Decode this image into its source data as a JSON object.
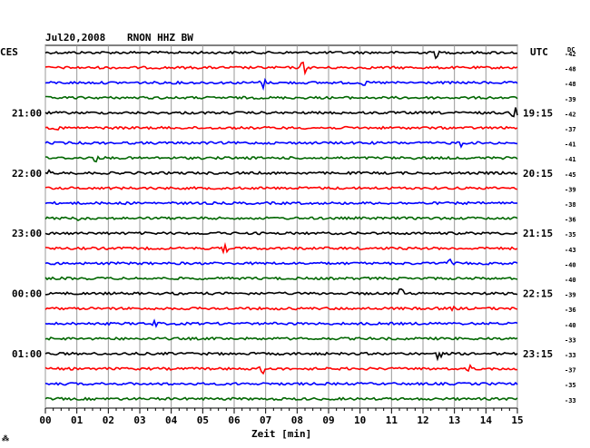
{
  "header": {
    "date": "Jul20,2008",
    "station": "RNON HHZ BW",
    "left_tz": "CES",
    "right_tz": "UTC",
    "dc_label": "DC"
  },
  "chart_data": {
    "type": "line",
    "title": "Jul20,2008   RNON HHZ BW",
    "xlabel": "Zeit [min]",
    "xlim": [
      0,
      15
    ],
    "x_ticks": [
      "00",
      "01",
      "02",
      "03",
      "04",
      "05",
      "06",
      "07",
      "08",
      "09",
      "10",
      "11",
      "12",
      "13",
      "14",
      "15"
    ],
    "grid": true,
    "trace_colors": [
      "#000000",
      "#ff0000",
      "#0000ff",
      "#006600"
    ],
    "left_time_labels": [
      {
        "row": 4,
        "label": "21:00"
      },
      {
        "row": 8,
        "label": "22:00"
      },
      {
        "row": 12,
        "label": "23:00"
      },
      {
        "row": 16,
        "label": "00:00"
      },
      {
        "row": 20,
        "label": "01:00"
      }
    ],
    "right_time_labels": [
      {
        "row": 4,
        "label": "19:15"
      },
      {
        "row": 8,
        "label": "20:15"
      },
      {
        "row": 12,
        "label": "21:15"
      },
      {
        "row": 16,
        "label": "22:15"
      },
      {
        "row": 20,
        "label": "23:15"
      }
    ],
    "dc_offsets": [
      -42,
      -48,
      -48,
      -39,
      -42,
      -37,
      -41,
      -41,
      -45,
      -39,
      -38,
      -36,
      -35,
      -43,
      -40,
      -40,
      -39,
      -36,
      -40,
      -33,
      -33,
      -37,
      -35,
      -33
    ],
    "events": [
      {
        "row": 0,
        "x": 12.4,
        "amp": 6
      },
      {
        "row": 1,
        "x": 8.2,
        "amp": 10
      },
      {
        "row": 2,
        "x": 6.9,
        "amp": 7
      },
      {
        "row": 2,
        "x": 10.1,
        "amp": 4
      },
      {
        "row": 4,
        "x": 14.9,
        "amp": 9
      },
      {
        "row": 5,
        "x": 0.4,
        "amp": 4
      },
      {
        "row": 6,
        "x": 13.2,
        "amp": 4
      },
      {
        "row": 7,
        "x": 1.6,
        "amp": 5
      },
      {
        "row": 8,
        "x": 0.2,
        "amp": 6
      },
      {
        "row": 11,
        "x": 1.1,
        "amp": 4
      },
      {
        "row": 12,
        "x": 5.4,
        "amp": 4
      },
      {
        "row": 13,
        "x": 5.7,
        "amp": 6
      },
      {
        "row": 14,
        "x": 12.8,
        "amp": 7
      },
      {
        "row": 16,
        "x": 11.3,
        "amp": 6
      },
      {
        "row": 17,
        "x": 12.9,
        "amp": 3
      },
      {
        "row": 18,
        "x": 3.5,
        "amp": 4
      },
      {
        "row": 20,
        "x": 12.5,
        "amp": 7
      },
      {
        "row": 21,
        "x": 6.9,
        "amp": 5
      },
      {
        "row": 21,
        "x": 13.5,
        "amp": 3
      }
    ],
    "footer_mark": "⁂"
  }
}
